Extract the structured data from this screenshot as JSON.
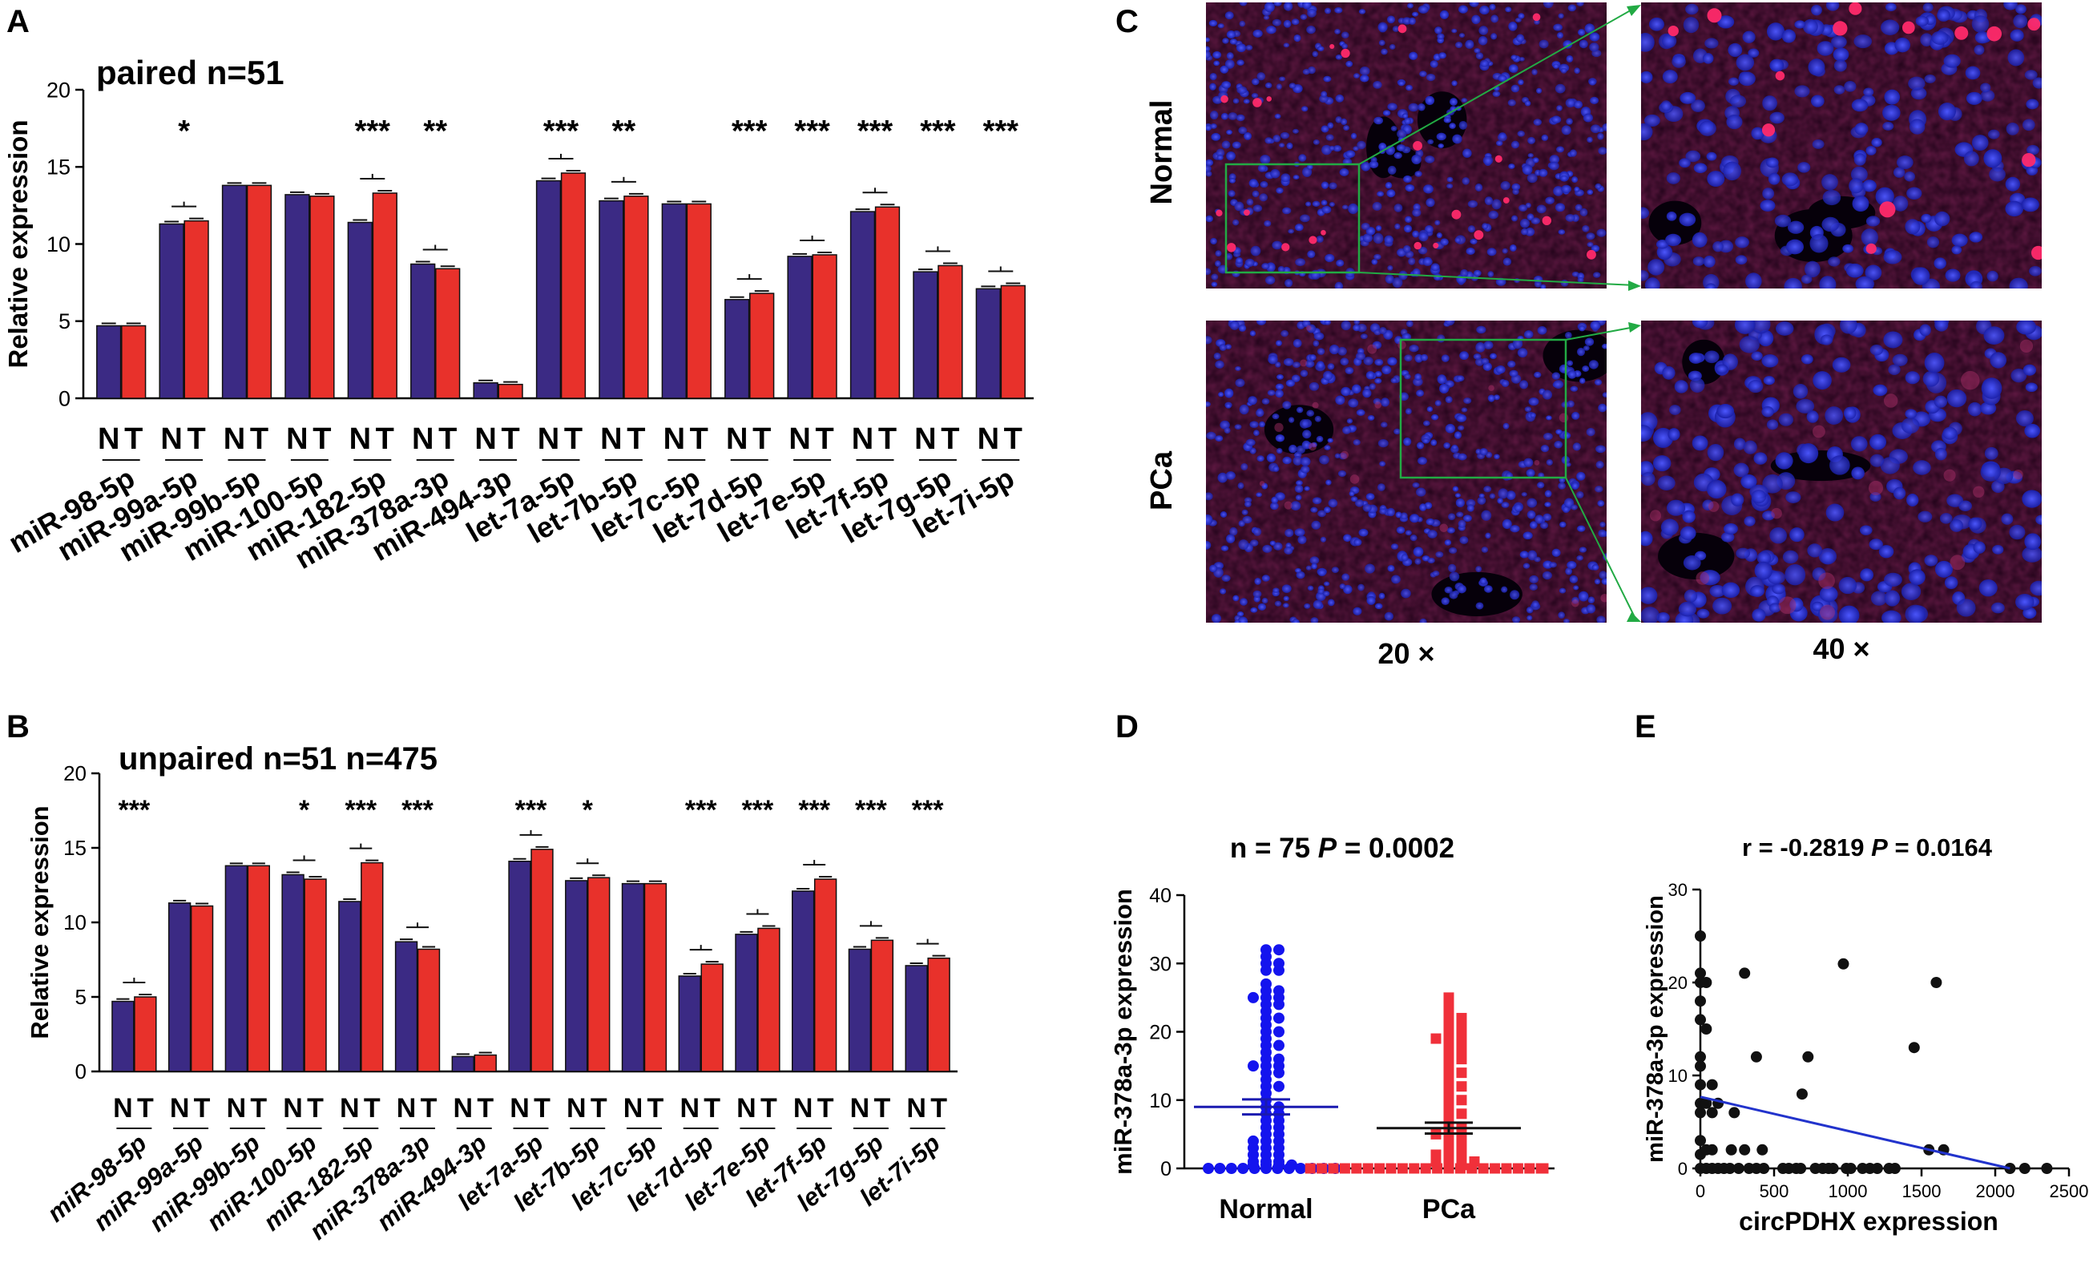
{
  "colors": {
    "normal_bar": "#3b2a84",
    "tumor_bar": "#e8312b",
    "normal_dot": "#1414ee",
    "pca_dot": "#f0303a",
    "fit_line": "#2233cc",
    "callout_line": "#22aa44",
    "axis": "#000000"
  },
  "panel_letters": {
    "a": "A",
    "b": "B",
    "c": "C",
    "d": "D",
    "e": "E"
  },
  "panel_c": {
    "row_labels": [
      "Normal",
      "PCa"
    ],
    "magnifications": [
      "20 ×",
      "40 ×"
    ]
  },
  "chart_data": [
    {
      "panel": "A",
      "type": "bar",
      "title": "paired n=51",
      "ylabel": "Relative expression",
      "ylim": [
        0,
        20
      ],
      "yticks": [
        "0",
        "5",
        "10",
        "15",
        "20"
      ],
      "group_labels": [
        "N",
        "T"
      ],
      "categories": [
        "miR-98-5p",
        "miR-99a-5p",
        "miR-99b-5p",
        "miR-100-5p",
        "miR-182-5p",
        "miR-378a-3p",
        "miR-494-3p",
        "let-7a-5p",
        "let-7b-5p",
        "let-7c-5p",
        "let-7d-5p",
        "let-7e-5p",
        "let-7f-5p",
        "let-7g-5p",
        "let-7i-5p"
      ],
      "series": [
        {
          "name": "N",
          "values": [
            4.7,
            11.3,
            13.8,
            13.2,
            11.4,
            8.7,
            1.0,
            14.1,
            12.8,
            12.6,
            6.4,
            9.2,
            12.1,
            8.2,
            7.1
          ]
        },
        {
          "name": "T",
          "values": [
            4.7,
            11.5,
            13.8,
            13.1,
            13.3,
            8.4,
            0.9,
            14.6,
            13.1,
            12.6,
            6.8,
            9.3,
            12.4,
            8.6,
            7.3
          ]
        }
      ],
      "significance": [
        "",
        "*",
        "",
        "",
        "***",
        "**",
        "",
        "***",
        "**",
        "",
        "***",
        "***",
        "***",
        "***",
        "***"
      ]
    },
    {
      "panel": "B",
      "type": "bar",
      "title": "unpaired n=51 n=475",
      "ylabel": "Relative expression",
      "ylim": [
        0,
        20
      ],
      "yticks": [
        "0",
        "5",
        "10",
        "15",
        "20"
      ],
      "group_labels": [
        "N",
        "T"
      ],
      "categories": [
        "miR-98-5p",
        "miR-99a-5p",
        "miR-99b-5p",
        "miR-100-5p",
        "miR-182-5p",
        "miR-378a-3p",
        "miR-494-3p",
        "let-7a-5p",
        "let-7b-5p",
        "let-7c-5p",
        "let-7d-5p",
        "let-7e-5p",
        "let-7f-5p",
        "let-7g-5p",
        "let-7i-5p"
      ],
      "series": [
        {
          "name": "N",
          "values": [
            4.7,
            11.3,
            13.8,
            13.2,
            11.4,
            8.7,
            1.0,
            14.1,
            12.8,
            12.6,
            6.4,
            9.2,
            12.1,
            8.2,
            7.1
          ]
        },
        {
          "name": "T",
          "values": [
            5.0,
            11.1,
            13.8,
            12.9,
            14.0,
            8.2,
            1.1,
            14.9,
            13.0,
            12.6,
            7.2,
            9.6,
            12.9,
            8.8,
            7.6
          ]
        }
      ],
      "significance": [
        "***",
        "",
        "",
        "*",
        "***",
        "***",
        "",
        "***",
        "*",
        "",
        "***",
        "***",
        "***",
        "***",
        "***"
      ]
    },
    {
      "panel": "D",
      "type": "scatter",
      "title_prefix": "n = 75 ",
      "title_p": "P",
      "title_suffix": " = 0.0002",
      "ylabel": "miR-378a-3p expression",
      "ylim": [
        0,
        40
      ],
      "yticks": [
        "0",
        "10",
        "20",
        "30",
        "40"
      ],
      "categories": [
        "Normal",
        "PCa"
      ],
      "means": [
        9.0,
        5.9
      ],
      "sem": [
        1.1,
        0.8
      ],
      "series": [
        {
          "name": "Normal",
          "values": [
            32,
            32,
            31,
            30,
            30,
            29,
            29,
            27,
            26,
            26,
            25,
            25,
            25,
            24,
            24,
            23,
            22,
            22,
            21,
            20,
            20,
            19,
            18,
            18,
            17,
            16,
            16,
            15,
            15,
            15,
            14,
            14,
            13,
            12,
            12,
            11,
            10,
            9,
            9,
            8,
            8,
            7,
            7,
            6,
            6,
            5,
            5,
            4,
            4,
            4,
            3,
            3,
            3,
            2,
            2,
            2,
            1,
            1,
            1,
            0.5,
            0.5,
            0.5,
            0.5,
            0,
            0,
            0,
            0,
            0,
            0,
            0,
            0,
            0,
            0,
            0,
            0
          ]
        },
        {
          "name": "PCa",
          "values": [
            25,
            24,
            23,
            22,
            22,
            21,
            21,
            20,
            20,
            19,
            19,
            19,
            18,
            18,
            17,
            17,
            16,
            16,
            15,
            14,
            14,
            13,
            12,
            12,
            11,
            10,
            10,
            9,
            8,
            8,
            7,
            6,
            6,
            5,
            5,
            5,
            4,
            4,
            3,
            3,
            2,
            2,
            2,
            1,
            1,
            1,
            1,
            0.5,
            0.5,
            0,
            0,
            0,
            0,
            0,
            0,
            0,
            0,
            0,
            0,
            0,
            0,
            0,
            0,
            0,
            0,
            0,
            0,
            0,
            0,
            0,
            0,
            0,
            0,
            0,
            0
          ]
        }
      ]
    },
    {
      "panel": "E",
      "type": "scatter",
      "title_prefix": "r = -0.2819 ",
      "title_p": "P",
      "title_suffix": " = 0.0164",
      "xlabel": "circPDHX expression",
      "ylabel": "miR-378a-3p expression",
      "xlim": [
        0,
        2500
      ],
      "ylim": [
        0,
        30
      ],
      "xticks": [
        "0",
        "500",
        "1000",
        "1500",
        "2000",
        "2500"
      ],
      "yticks": [
        "0",
        "10",
        "20",
        "30"
      ],
      "fit_line": [
        [
          0,
          7.7
        ],
        [
          2100,
          0
        ]
      ],
      "points": [
        [
          0,
          25
        ],
        [
          0,
          21
        ],
        [
          0,
          20
        ],
        [
          0,
          18
        ],
        [
          0,
          16
        ],
        [
          0,
          12
        ],
        [
          0,
          11
        ],
        [
          0,
          9
        ],
        [
          0,
          7
        ],
        [
          0,
          6
        ],
        [
          0,
          3
        ],
        [
          0,
          1.5
        ],
        [
          0,
          0
        ],
        [
          40,
          20
        ],
        [
          40,
          15
        ],
        [
          40,
          7
        ],
        [
          40,
          2
        ],
        [
          40,
          0
        ],
        [
          80,
          9
        ],
        [
          80,
          6
        ],
        [
          80,
          2
        ],
        [
          80,
          0
        ],
        [
          120,
          7
        ],
        [
          120,
          0
        ],
        [
          160,
          0
        ],
        [
          200,
          0
        ],
        [
          210,
          2
        ],
        [
          230,
          6
        ],
        [
          260,
          0
        ],
        [
          300,
          21
        ],
        [
          300,
          2
        ],
        [
          330,
          0
        ],
        [
          380,
          12
        ],
        [
          380,
          0
        ],
        [
          420,
          2
        ],
        [
          430,
          0
        ],
        [
          560,
          0
        ],
        [
          600,
          0
        ],
        [
          650,
          0
        ],
        [
          680,
          0
        ],
        [
          690,
          8
        ],
        [
          730,
          12
        ],
        [
          780,
          0
        ],
        [
          830,
          0
        ],
        [
          870,
          0
        ],
        [
          900,
          0
        ],
        [
          970,
          22
        ],
        [
          990,
          0
        ],
        [
          1020,
          0
        ],
        [
          1100,
          0
        ],
        [
          1150,
          0
        ],
        [
          1200,
          0
        ],
        [
          1280,
          0
        ],
        [
          1320,
          0
        ],
        [
          1450,
          13
        ],
        [
          1550,
          2
        ],
        [
          1600,
          20
        ],
        [
          1650,
          2
        ],
        [
          2100,
          0
        ],
        [
          2200,
          0
        ],
        [
          2350,
          0
        ]
      ]
    }
  ]
}
